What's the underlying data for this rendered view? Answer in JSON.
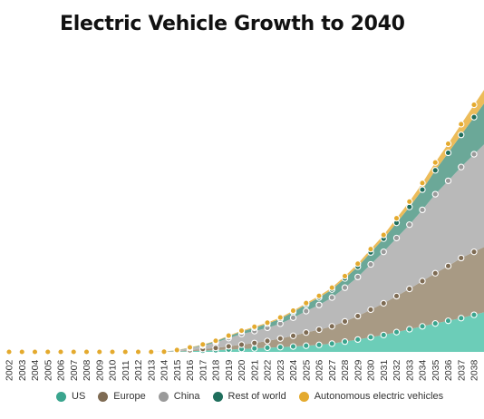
{
  "title": "Electric Vehicle Growth to 2040",
  "chart_data": {
    "type": "area",
    "stacked": true,
    "title": "Electric Vehicle Growth to 2040",
    "xlabel": "",
    "ylabel": "",
    "x": [
      "2002",
      "2003",
      "2004",
      "2005",
      "2006",
      "2007",
      "2008",
      "2009",
      "2010",
      "2011",
      "2012",
      "2013",
      "2014",
      "2015",
      "2016",
      "2017",
      "2018",
      "2019",
      "2020",
      "2021",
      "2022",
      "2023",
      "2024",
      "2025",
      "2026",
      "2027",
      "2028",
      "2029",
      "2030",
      "2031",
      "2032",
      "2033",
      "2034",
      "2035",
      "2036",
      "2037",
      "2038"
    ],
    "series": [
      {
        "name": "US",
        "color": "#6ccdb8",
        "dot_color": "#3aa58e",
        "values": [
          0,
          0,
          0,
          0,
          0,
          0,
          0,
          0,
          0,
          0,
          0,
          0,
          0,
          0.2,
          0.4,
          0.6,
          0.8,
          1.1,
          1.4,
          1.7,
          2.0,
          2.3,
          2.6,
          3.0,
          3.4,
          4.0,
          5.0,
          6.0,
          7.1,
          8.2,
          9.6,
          11.0,
          12.4,
          13.8,
          15.1,
          16.4,
          18.0
        ]
      },
      {
        "name": "Europe",
        "color": "#a89a84",
        "dot_color": "#7e6b53",
        "values": [
          0,
          0,
          0,
          0,
          0,
          0,
          0,
          0,
          0,
          0,
          0,
          0,
          0,
          0.2,
          0.4,
          0.8,
          1.1,
          1.6,
          2.1,
          2.6,
          3.3,
          4.2,
          5.2,
          6.4,
          7.4,
          8.4,
          9.8,
          11.4,
          13.4,
          15.4,
          17.5,
          19.6,
          22.0,
          24.4,
          26.6,
          29.2,
          30.6
        ]
      },
      {
        "name": "China",
        "color": "#b9b9b9",
        "dot_color": "#9a9a9a",
        "values": [
          0,
          0,
          0,
          0,
          0,
          0,
          0,
          0,
          0,
          0,
          0,
          0,
          0.1,
          0.3,
          1.0,
          1.6,
          2.6,
          4.0,
          5.2,
          5.8,
          6.4,
          7.2,
          8.8,
          10.4,
          12.0,
          14.0,
          16.4,
          19.0,
          22.0,
          25.0,
          28.2,
          31.2,
          34.6,
          38.4,
          41.4,
          44.2,
          47.4
        ]
      },
      {
        "name": "Rest of world",
        "color": "#6ba898",
        "dot_color": "#1f6e5c",
        "values": [
          0,
          0,
          0,
          0,
          0,
          0,
          0,
          0,
          0,
          0,
          0,
          0,
          0,
          0.1,
          0.2,
          0.4,
          0.6,
          0.9,
          1.2,
          1.6,
          2.0,
          2.4,
          2.8,
          3.2,
          3.6,
          3.9,
          4.5,
          5.0,
          5.8,
          6.4,
          7.4,
          8.6,
          9.8,
          11.6,
          13.6,
          15.6,
          18.0
        ]
      },
      {
        "name": "Autonomous electric vehicles",
        "color": "#ecbc5a",
        "dot_color": "#e4aa2e",
        "values": [
          0,
          0,
          0,
          0,
          0,
          0,
          0,
          0,
          0,
          0,
          0,
          0,
          0,
          0.1,
          0.2,
          0.2,
          0.3,
          0.3,
          0.4,
          0.5,
          0.5,
          0.6,
          0.6,
          0.7,
          0.8,
          0.9,
          1.1,
          1.4,
          1.6,
          1.8,
          2.2,
          2.6,
          3.2,
          3.8,
          4.4,
          5.2,
          6.0
        ]
      }
    ],
    "grid": false,
    "legend": "bottom"
  }
}
